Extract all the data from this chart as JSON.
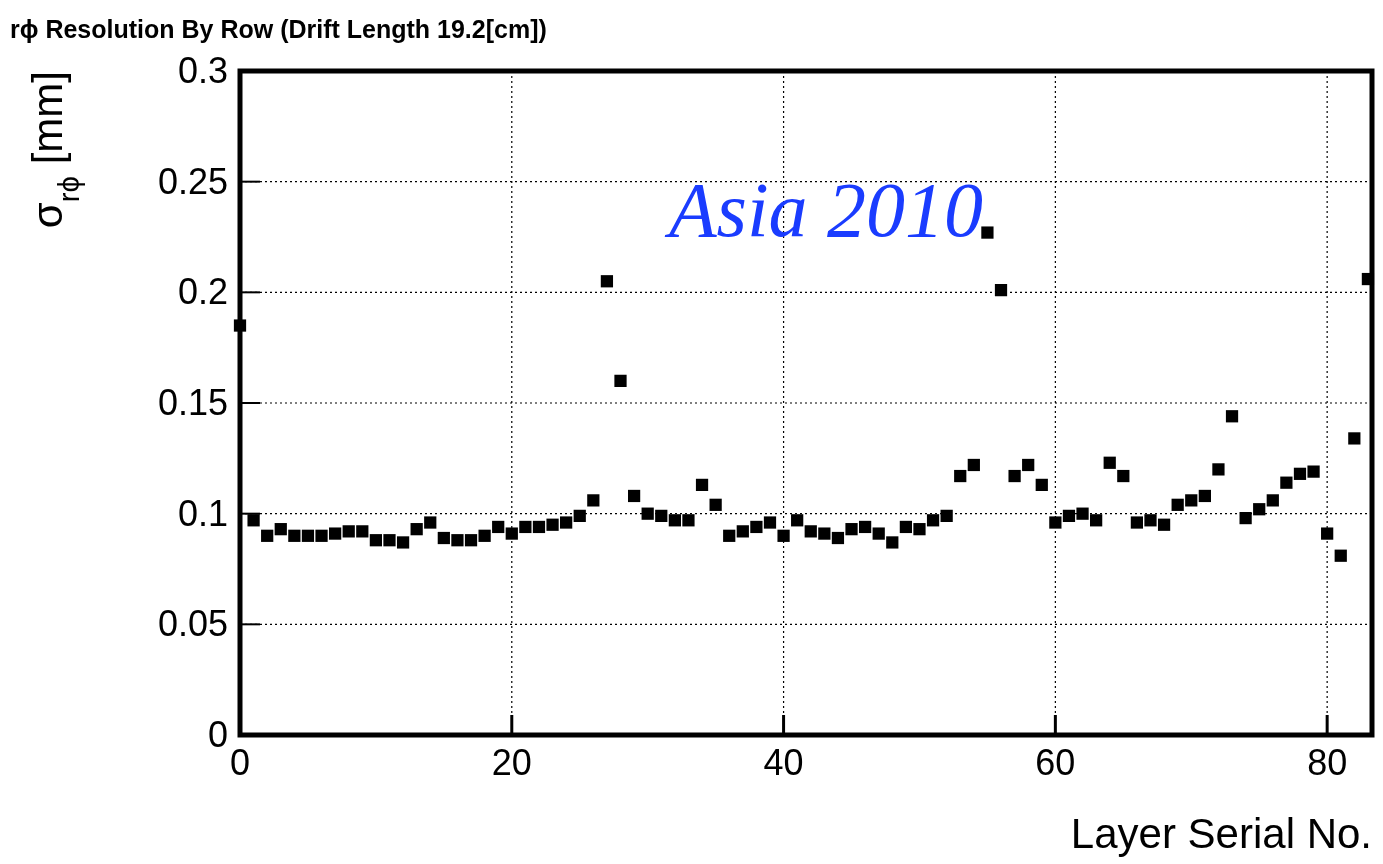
{
  "chart_data": {
    "type": "scatter",
    "title": "rϕ Resolution By Row (Drift Length 19.2[cm])",
    "xlabel": "Layer Serial No.",
    "ylabel": "σ$_{rϕ}$ [mm]",
    "annotations": [
      "Asia 2010"
    ],
    "x": [
      0,
      1,
      2,
      3,
      4,
      5,
      6,
      7,
      8,
      9,
      10,
      11,
      12,
      13,
      14,
      15,
      16,
      17,
      18,
      19,
      20,
      21,
      22,
      23,
      24,
      25,
      26,
      27,
      28,
      29,
      30,
      31,
      32,
      33,
      34,
      35,
      36,
      37,
      38,
      39,
      40,
      41,
      42,
      43,
      44,
      45,
      46,
      47,
      48,
      49,
      50,
      51,
      52,
      53,
      54,
      55,
      56,
      57,
      58,
      59,
      60,
      61,
      62,
      63,
      64,
      65,
      66,
      67,
      68,
      69,
      70,
      71,
      72,
      73,
      74,
      75,
      76,
      77,
      78,
      79,
      80,
      81,
      82,
      83
    ],
    "series": [
      {
        "color": "#000000",
        "values": [
          0.185,
          0.097,
          0.09,
          0.093,
          0.09,
          0.09,
          0.09,
          0.091,
          0.092,
          0.092,
          0.088,
          0.088,
          0.087,
          0.093,
          0.096,
          0.089,
          0.088,
          0.088,
          0.09,
          0.094,
          0.091,
          0.094,
          0.094,
          0.095,
          0.096,
          0.099,
          0.106,
          0.205,
          0.16,
          0.108,
          0.1,
          0.099,
          0.097,
          0.097,
          0.113,
          0.104,
          0.09,
          0.092,
          0.094,
          0.096,
          0.09,
          0.097,
          0.092,
          0.091,
          0.089,
          0.093,
          0.094,
          0.091,
          0.087,
          0.094,
          0.093,
          0.097,
          0.099,
          0.117,
          0.122,
          0.227,
          0.201,
          0.117,
          0.122,
          0.113,
          0.096,
          0.099,
          0.1,
          0.097,
          0.123,
          0.117,
          0.096,
          0.097,
          0.095,
          0.104,
          0.106,
          0.108,
          0.12,
          0.144,
          0.098,
          0.102,
          0.106,
          0.114,
          0.118,
          0.119,
          0.091,
          0.081,
          0.134,
          0.206
        ]
      }
    ],
    "xlim": [
      0,
      83.3
    ],
    "xticks": [
      0,
      20,
      40,
      60,
      80
    ],
    "ylim": [
      0,
      0.3
    ],
    "yticks": [
      0,
      0.05,
      0.1,
      0.15,
      0.2,
      0.25,
      0.3
    ],
    "grid": true,
    "marker": "square"
  }
}
